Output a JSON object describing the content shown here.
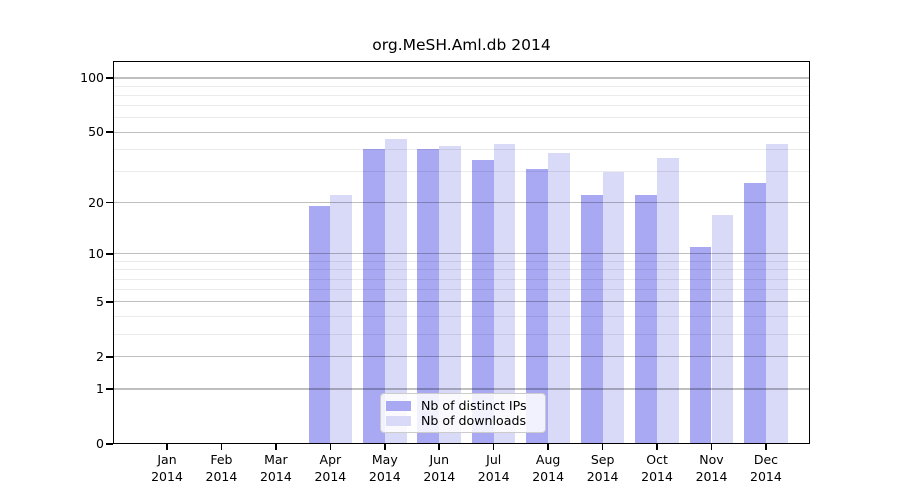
{
  "title": "org.MeSH.Aml.db 2014",
  "legend": [
    {
      "label": "Nb of distinct IPs",
      "color": "#a8a8f3"
    },
    {
      "label": "Nb of downloads",
      "color": "#d9d9f8"
    }
  ],
  "colors": {
    "ips_bar": "#a8a8f3",
    "downloads_bar": "#d9d9f8",
    "axis": "#000000"
  },
  "chart_data": {
    "type": "bar",
    "title": "org.MeSH.Aml.db 2014",
    "scale": "log1p",
    "categories": [
      "Jan 2014",
      "Feb 2014",
      "Mar 2014",
      "Apr 2014",
      "May 2014",
      "Jun 2014",
      "Jul 2014",
      "Aug 2014",
      "Sep 2014",
      "Oct 2014",
      "Nov 2014",
      "Dec 2014"
    ],
    "series": [
      {
        "name": "Nb of distinct IPs",
        "color": "#a8a8f3",
        "values": [
          0,
          0,
          0,
          19,
          40,
          40,
          35,
          31,
          22,
          22,
          11,
          26
        ]
      },
      {
        "name": "Nb of downloads",
        "color": "#d9d9f8",
        "values": [
          0,
          0,
          0,
          22,
          46,
          42,
          43,
          38,
          30,
          36,
          17,
          43
        ]
      }
    ],
    "xlabel": "",
    "ylabel": "",
    "ylim": [
      0,
      123
    ],
    "yticks": [
      0,
      1,
      2,
      5,
      10,
      20,
      50,
      100
    ],
    "yticks_minor": [
      3,
      4,
      6,
      7,
      8,
      9,
      30,
      40,
      60,
      70,
      80,
      90
    ],
    "grid": true,
    "grid_above_bars": true,
    "legend_position": "lower center"
  }
}
